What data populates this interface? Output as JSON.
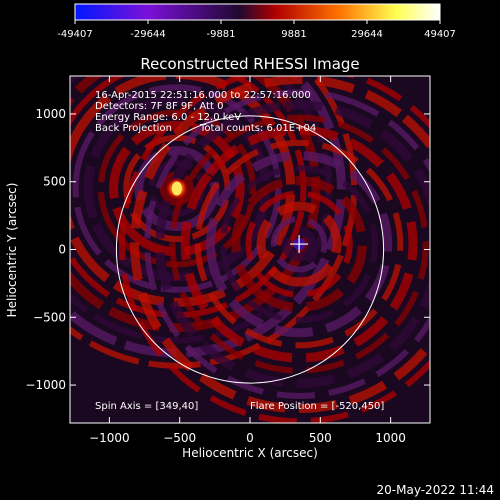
{
  "chart_data": {
    "type": "heatmap",
    "title": "Reconstructed RHESSI Image",
    "xlabel": "Heliocentric X (arcsec)",
    "ylabel": "Heliocentric Y (arcsec)",
    "xlim": [
      -1280,
      1280
    ],
    "ylim": [
      -1280,
      1280
    ],
    "x_ticks": [
      -1000,
      -500,
      0,
      500,
      1000
    ],
    "y_ticks": [
      -1000,
      -500,
      0,
      500,
      1000
    ],
    "x_tick_labels": [
      "−1000",
      "−500",
      "0",
      "500",
      "1000"
    ],
    "y_tick_labels": [
      "−1000",
      "−500",
      "0",
      "500",
      "1000"
    ],
    "colorbar": {
      "ticks": [
        -49407,
        -29644,
        -9881,
        9881,
        29644,
        49407
      ],
      "tick_labels": [
        "-49407",
        "-29644",
        "-9881",
        "9881",
        "29644",
        "49407"
      ],
      "colors": [
        "#0018ff",
        "#7a10d8",
        "#200830",
        "#b00000",
        "#ff7000",
        "#ffff50",
        "#ffffff"
      ]
    },
    "annotations": [
      "16-Apr-2015 22:51:16.000 to 22:57:16.000",
      "Detectors: 7F 8F 9F, Att 0",
      "Energy Range: 6.0 - 12.0 keV",
      "Back Projection",
      "Total counts: 6.01E+04",
      "Spin Axis = [349,40]",
      "Flare Position = [-520,450]"
    ],
    "solar_limb_radius": 950,
    "spin_axis": [
      349,
      40
    ],
    "flare_position": [
      -520,
      450
    ],
    "sources": [
      {
        "x": -520,
        "y": 450,
        "kind": "flare-peak"
      }
    ],
    "grid": false
  },
  "timestamp": "20-May-2022 11:44"
}
